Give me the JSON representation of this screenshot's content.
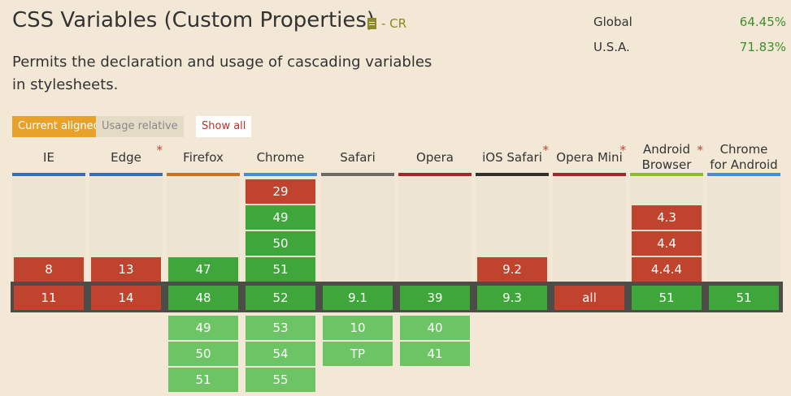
{
  "feature": {
    "title": "CSS Variables (Custom Properties)",
    "status": "- CR",
    "description": "Permits the declaration and usage of cascading variables in stylesheets."
  },
  "usage": {
    "global": {
      "label": "Global",
      "value": "64.45%"
    },
    "usa": {
      "label": "U.S.A.",
      "value": "71.83%"
    }
  },
  "view_buttons": {
    "current": "Current aligned",
    "relative": "Usage relative",
    "show_all": "Show all"
  },
  "browsers": [
    {
      "name": "IE",
      "star": false,
      "bar_color": "#3a6cae",
      "past": [
        "8"
      ],
      "current": {
        "v": "11",
        "s": "red"
      },
      "future": []
    },
    {
      "name": "Edge",
      "star": true,
      "bar_color": "#3a6cae",
      "past": [
        "13"
      ],
      "current": {
        "v": "14",
        "s": "red"
      },
      "future": []
    },
    {
      "name": "Firefox",
      "star": false,
      "bar_color": "#c4732a",
      "past": [
        "47"
      ],
      "current": {
        "v": "48",
        "s": "green"
      },
      "future": [
        "49",
        "50",
        "51"
      ]
    },
    {
      "name": "Chrome",
      "star": false,
      "bar_color": "#4a8ad8",
      "past": [
        "29",
        "49",
        "50",
        "51"
      ],
      "current": {
        "v": "52",
        "s": "green"
      },
      "future": [
        "53",
        "54",
        "55"
      ]
    },
    {
      "name": "Safari",
      "star": false,
      "bar_color": "#6b6b6b",
      "past": [],
      "current": {
        "v": "9.1",
        "s": "green"
      },
      "future": [
        "10",
        "TP"
      ]
    },
    {
      "name": "Opera",
      "star": false,
      "bar_color": "#a2262a",
      "past": [],
      "current": {
        "v": "39",
        "s": "green"
      },
      "future": [
        "40",
        "41"
      ]
    },
    {
      "name": "iOS Safari",
      "star": true,
      "bar_color": "#303030",
      "past": [
        "9.2"
      ],
      "current": {
        "v": "9.3",
        "s": "green"
      },
      "future": []
    },
    {
      "name": "Opera Mini",
      "star": true,
      "bar_color": "#a2262a",
      "past": [],
      "current": {
        "v": "all",
        "s": "red"
      },
      "future": []
    },
    {
      "name": "Android Browser",
      "star": true,
      "bar_color": "#8bbf2a",
      "past": [
        "4.3",
        "4.4",
        "4.4.4"
      ],
      "current": {
        "v": "51",
        "s": "green"
      },
      "future": []
    },
    {
      "name": "Chrome for Android",
      "star": false,
      "bar_color": "#4a8ad8",
      "past": [],
      "current": {
        "v": "51",
        "s": "green"
      },
      "future": []
    }
  ],
  "past_support": {
    "Chrome": [
      "red",
      "green",
      "green",
      "green"
    ],
    "IE": [
      "red"
    ],
    "Edge": [
      "red"
    ],
    "Firefox": [
      "green"
    ],
    "iOS Safari": [
      "red"
    ],
    "Android Browser": [
      "red",
      "red",
      "red"
    ]
  },
  "colors": {
    "background": "#f2e8d5",
    "supported": "#3ea63a",
    "unsupported": "#c0432d",
    "future_supported": "#6cc464",
    "accent": "#e8a22a"
  }
}
